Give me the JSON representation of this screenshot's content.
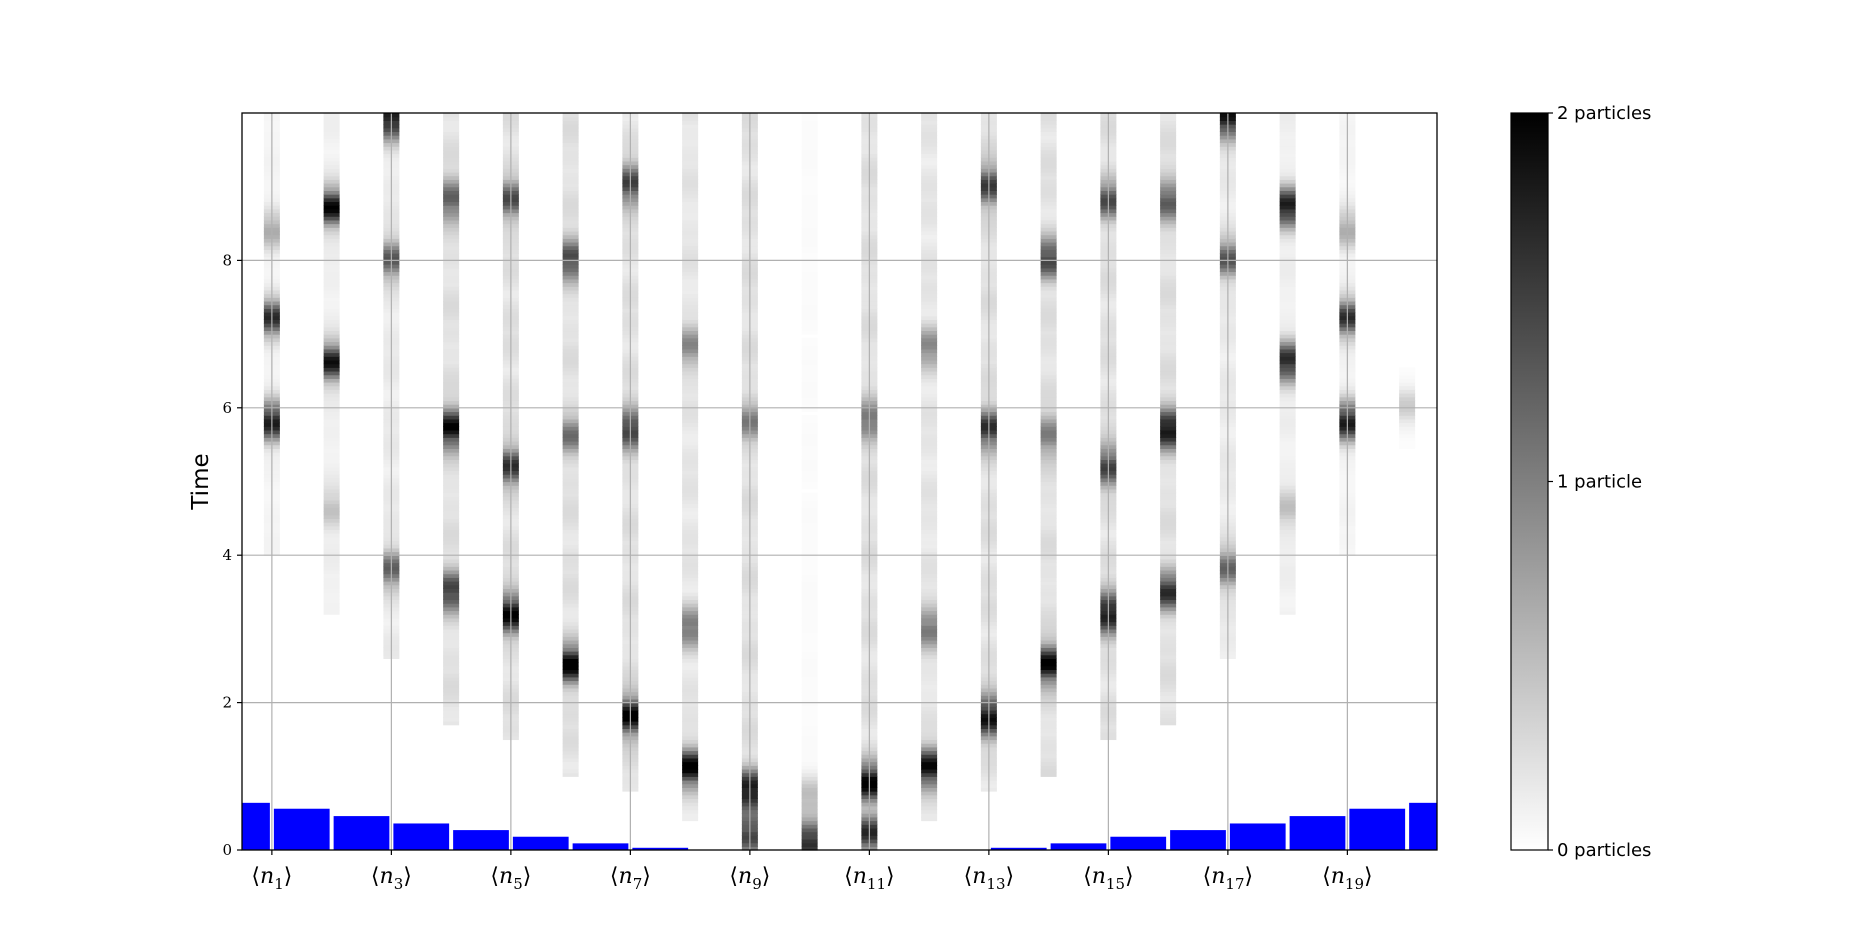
{
  "chart_data": {
    "type": "heatmap",
    "title": "",
    "xlabel": "",
    "ylabel": "Time",
    "ylim": [
      0,
      10
    ],
    "yticks": [
      0,
      2,
      4,
      6,
      8
    ],
    "xticks": [
      {
        "site": 1,
        "base": "n",
        "sub": "1"
      },
      {
        "site": 3,
        "base": "n",
        "sub": "3"
      },
      {
        "site": 5,
        "base": "n",
        "sub": "5"
      },
      {
        "site": 7,
        "base": "n",
        "sub": "7"
      },
      {
        "site": 9,
        "base": "n",
        "sub": "9"
      },
      {
        "site": 11,
        "base": "n",
        "sub": "11"
      },
      {
        "site": 13,
        "base": "n",
        "sub": "13"
      },
      {
        "site": 15,
        "base": "n",
        "sub": "15"
      },
      {
        "site": 17,
        "base": "n",
        "sub": "17"
      },
      {
        "site": 19,
        "base": "n",
        "sub": "19"
      }
    ],
    "grid": true,
    "n_sites": 20,
    "colorscale": {
      "min": 0,
      "max": 2,
      "low_color": "#ffffff",
      "high_color": "#000000"
    },
    "colorbar": {
      "ticks": [
        {
          "value": 0,
          "label": "0 particles"
        },
        {
          "value": 1,
          "label": "1 particle"
        },
        {
          "value": 2,
          "label": "2 particles"
        }
      ]
    },
    "potential": {
      "color": "#0000ff",
      "heights": [
        0.64,
        0.56,
        0.46,
        0.36,
        0.27,
        0.18,
        0.09,
        0.03,
        0.0,
        0.0,
        0.0,
        0.0,
        0.0,
        0.03,
        0.09,
        0.18,
        0.27,
        0.36,
        0.46,
        0.56,
        0.64
      ]
    },
    "columns": [
      {
        "site": 1,
        "start": 4.0,
        "peaks": [
          [
            5.8,
            1.9
          ],
          [
            7.2,
            1.6
          ],
          [
            8.4,
            0.6
          ]
        ],
        "base": 0.1
      },
      {
        "site": 2,
        "start": 3.2,
        "peaks": [
          [
            6.6,
            1.8
          ],
          [
            8.7,
            1.9
          ],
          [
            4.6,
            0.4
          ]
        ],
        "base": 0.15
      },
      {
        "site": 3,
        "start": 2.6,
        "peaks": [
          [
            3.8,
            1.1
          ],
          [
            9.9,
            1.9
          ],
          [
            8.0,
            1.2
          ]
        ],
        "base": 0.2
      },
      {
        "site": 4,
        "start": 1.7,
        "peaks": [
          [
            5.7,
            1.9
          ],
          [
            3.5,
            1.5
          ],
          [
            8.8,
            1.2
          ]
        ],
        "base": 0.3
      },
      {
        "site": 5,
        "start": 1.5,
        "peaks": [
          [
            3.2,
            1.9
          ],
          [
            5.2,
            1.4
          ],
          [
            8.8,
            1.2
          ]
        ],
        "base": 0.3
      },
      {
        "site": 6,
        "start": 1.0,
        "peaks": [
          [
            2.5,
            1.9
          ],
          [
            8.0,
            1.4
          ],
          [
            5.6,
            0.9
          ]
        ],
        "base": 0.3
      },
      {
        "site": 7,
        "start": 0.8,
        "peaks": [
          [
            1.8,
            1.9
          ],
          [
            5.7,
            1.5
          ],
          [
            9.0,
            1.4
          ]
        ],
        "base": 0.3
      },
      {
        "site": 8,
        "start": 0.4,
        "peaks": [
          [
            1.1,
            1.9
          ],
          [
            3.0,
            1.0
          ],
          [
            6.8,
            0.8
          ]
        ],
        "base": 0.25
      },
      {
        "site": 9,
        "start": 0.0,
        "peaks": [
          [
            0.8,
            1.9
          ],
          [
            0.2,
            1.5
          ],
          [
            5.8,
            0.8
          ]
        ],
        "base": 0.3
      },
      {
        "site": 10,
        "start": 0.0,
        "peaks": [
          [
            0.1,
            1.9
          ],
          [
            0.7,
            0.6
          ]
        ],
        "base": 0.04
      },
      {
        "site": 11,
        "start": 0.0,
        "peaks": [
          [
            0.9,
            1.9
          ],
          [
            0.2,
            1.5
          ],
          [
            5.8,
            1.0
          ]
        ],
        "base": 0.3
      },
      {
        "site": 12,
        "start": 0.4,
        "peaks": [
          [
            1.1,
            1.9
          ],
          [
            3.0,
            1.0
          ],
          [
            6.8,
            0.8
          ]
        ],
        "base": 0.25
      },
      {
        "site": 13,
        "start": 0.8,
        "peaks": [
          [
            1.8,
            1.9
          ],
          [
            5.7,
            1.5
          ],
          [
            9.0,
            1.4
          ]
        ],
        "base": 0.3
      },
      {
        "site": 14,
        "start": 1.0,
        "peaks": [
          [
            2.5,
            1.9
          ],
          [
            8.0,
            1.4
          ],
          [
            5.6,
            0.9
          ]
        ],
        "base": 0.3
      },
      {
        "site": 15,
        "start": 1.5,
        "peaks": [
          [
            3.2,
            1.9
          ],
          [
            5.2,
            1.4
          ],
          [
            8.8,
            1.2
          ]
        ],
        "base": 0.3
      },
      {
        "site": 16,
        "start": 1.7,
        "peaks": [
          [
            5.7,
            1.9
          ],
          [
            3.5,
            1.5
          ],
          [
            8.8,
            1.2
          ]
        ],
        "base": 0.3
      },
      {
        "site": 17,
        "start": 2.6,
        "peaks": [
          [
            3.8,
            1.1
          ],
          [
            9.9,
            1.9
          ],
          [
            8.0,
            1.2
          ]
        ],
        "base": 0.2
      },
      {
        "site": 18,
        "start": 3.2,
        "peaks": [
          [
            6.6,
            1.8
          ],
          [
            8.7,
            1.9
          ],
          [
            4.6,
            0.4
          ]
        ],
        "base": 0.15
      },
      {
        "site": 19,
        "start": 4.0,
        "peaks": [
          [
            5.8,
            1.9
          ],
          [
            7.2,
            1.6
          ],
          [
            8.4,
            0.6
          ]
        ],
        "base": 0.1
      },
      {
        "site": 20,
        "start": 4.5,
        "peaks": [
          [
            6.0,
            0.4
          ]
        ],
        "base": 0.02
      }
    ]
  }
}
